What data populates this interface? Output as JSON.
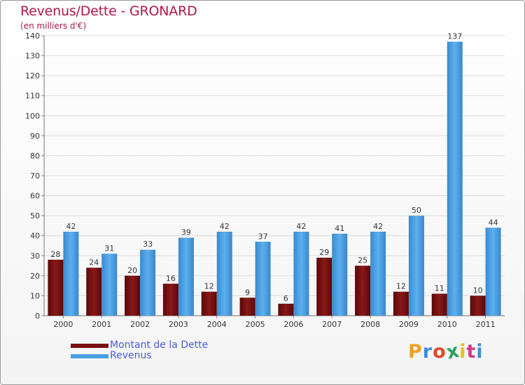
{
  "title": "Revenus/Dette - GRONARD",
  "subtitle": "(en milliers d'€)",
  "chart_data": {
    "type": "bar",
    "title": "Revenus/Dette - GRONARD",
    "ylabel": "(en milliers d'€)",
    "xlabel": "",
    "ylim": [
      0,
      140
    ],
    "ytick_step": 10,
    "grid": true,
    "legend_position": "bottom-left",
    "categories": [
      "2000",
      "2001",
      "2002",
      "2003",
      "2004",
      "2005",
      "2006",
      "2007",
      "2008",
      "2009",
      "2010",
      "2011"
    ],
    "series": [
      {
        "name": "Montant de la Dette",
        "color": "#7a1010",
        "values": [
          28,
          24,
          20,
          16,
          12,
          9,
          6,
          29,
          25,
          12,
          11,
          10
        ]
      },
      {
        "name": "Revenus",
        "color": "#4a9fe0",
        "values": [
          42,
          31,
          33,
          39,
          42,
          37,
          42,
          41,
          42,
          50,
          137,
          44
        ]
      }
    ]
  },
  "legend": {
    "items": [
      {
        "label": "Montant de la Dette",
        "color": "#7a1010"
      },
      {
        "label": "Revenus",
        "color": "#4a9fe0"
      }
    ]
  },
  "logo": {
    "letters": [
      "P",
      "r",
      "o",
      "x",
      "i",
      "t",
      "i"
    ],
    "colors": [
      "#f0a020",
      "#3a8ee0",
      "#e04a2a",
      "#30a060",
      "#e8c020",
      "#d03a8a",
      "#3a8ee0"
    ]
  }
}
